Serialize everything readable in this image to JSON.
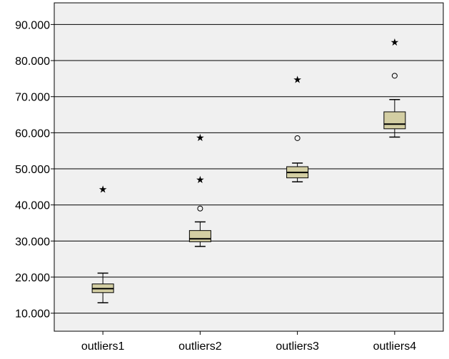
{
  "chart_data": {
    "type": "boxplot",
    "title": "",
    "xlabel": "",
    "ylabel": "",
    "ylim": [
      5000,
      96000
    ],
    "yticks": [
      10000,
      20000,
      30000,
      40000,
      50000,
      60000,
      70000,
      80000,
      90000
    ],
    "ytick_labels": [
      "10.000",
      "20.000",
      "30.000",
      "40.000",
      "50.000",
      "60.000",
      "70.000",
      "80.000",
      "90.000"
    ],
    "grid": true,
    "categories": [
      "outliers1",
      "outliers2",
      "outliers3",
      "outliers4"
    ],
    "boxes": [
      {
        "name": "outliers1",
        "whisker_low": 12900,
        "q1": 15700,
        "median": 16800,
        "q3": 18100,
        "whisker_high": 21100,
        "outliers": [],
        "extremes": [
          44600
        ]
      },
      {
        "name": "outliers2",
        "whisker_low": 28500,
        "q1": 29800,
        "median": 30600,
        "q3": 32900,
        "whisker_high": 35300,
        "outliers": [
          39000
        ],
        "extremes": [
          47200,
          58900
        ]
      },
      {
        "name": "outliers3",
        "whisker_low": 46400,
        "q1": 47500,
        "median": 49000,
        "q3": 50600,
        "whisker_high": 51600,
        "outliers": [
          58500
        ],
        "extremes": [
          75000
        ]
      },
      {
        "name": "outliers4",
        "whisker_low": 58800,
        "q1": 61100,
        "median": 62400,
        "q3": 65800,
        "whisker_high": 69200,
        "outliers": [
          75800
        ],
        "extremes": [
          85300
        ]
      }
    ],
    "colors": {
      "plot_background": "#f0f0f0",
      "box_fill": "#d3cea3",
      "stroke": "#000000",
      "grid": "#000000"
    }
  }
}
